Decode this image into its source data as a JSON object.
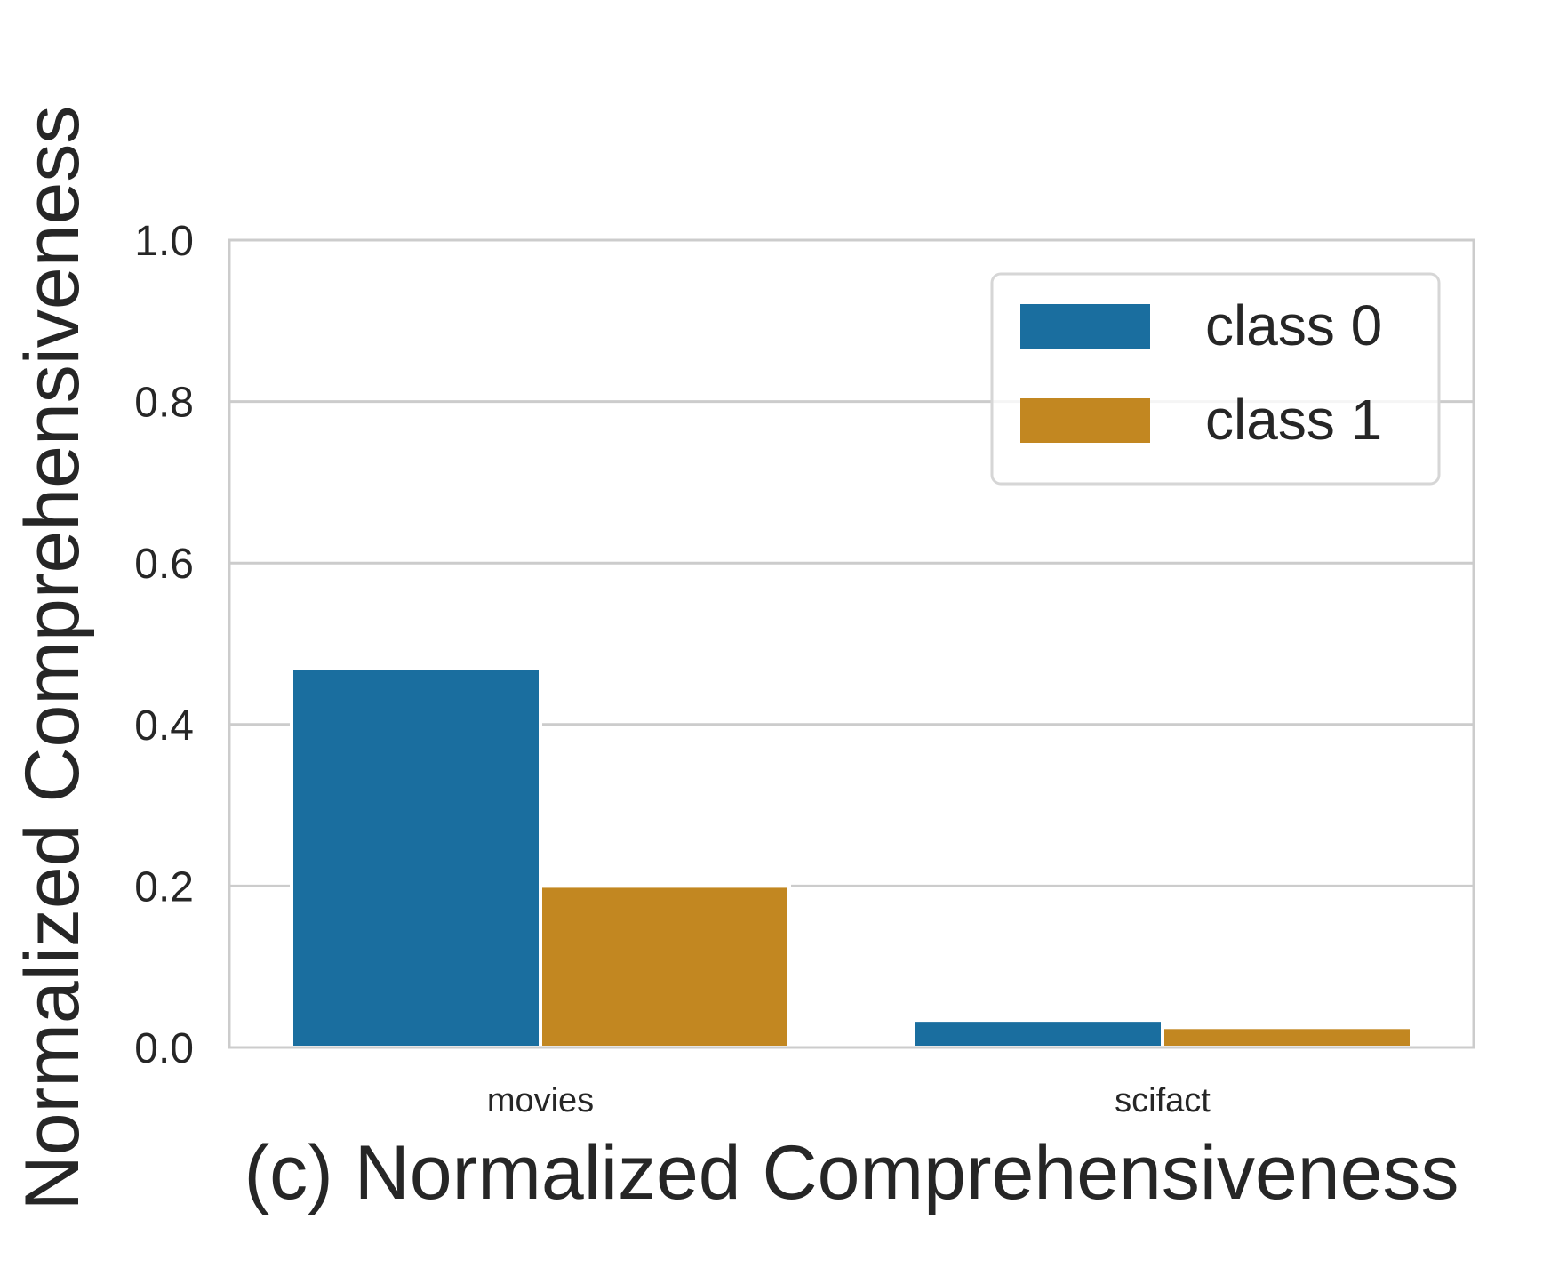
{
  "chart_data": {
    "type": "bar",
    "categories": [
      "movies",
      "scifact"
    ],
    "series": [
      {
        "name": "class 0",
        "values": [
          0.47,
          0.034
        ],
        "color": "#1a6e9f"
      },
      {
        "name": "class 1",
        "values": [
          0.2,
          0.025
        ],
        "color": "#c28721"
      }
    ],
    "ylabel": "Normalized Comprehensiveness",
    "xlabel": "(c) Normalized Comprehensiveness",
    "ylim": [
      0,
      1.0
    ],
    "yticks": [
      "0.0",
      "0.2",
      "0.4",
      "0.6",
      "0.8",
      "1.0"
    ],
    "grid": true,
    "legend_position": "top-right"
  }
}
